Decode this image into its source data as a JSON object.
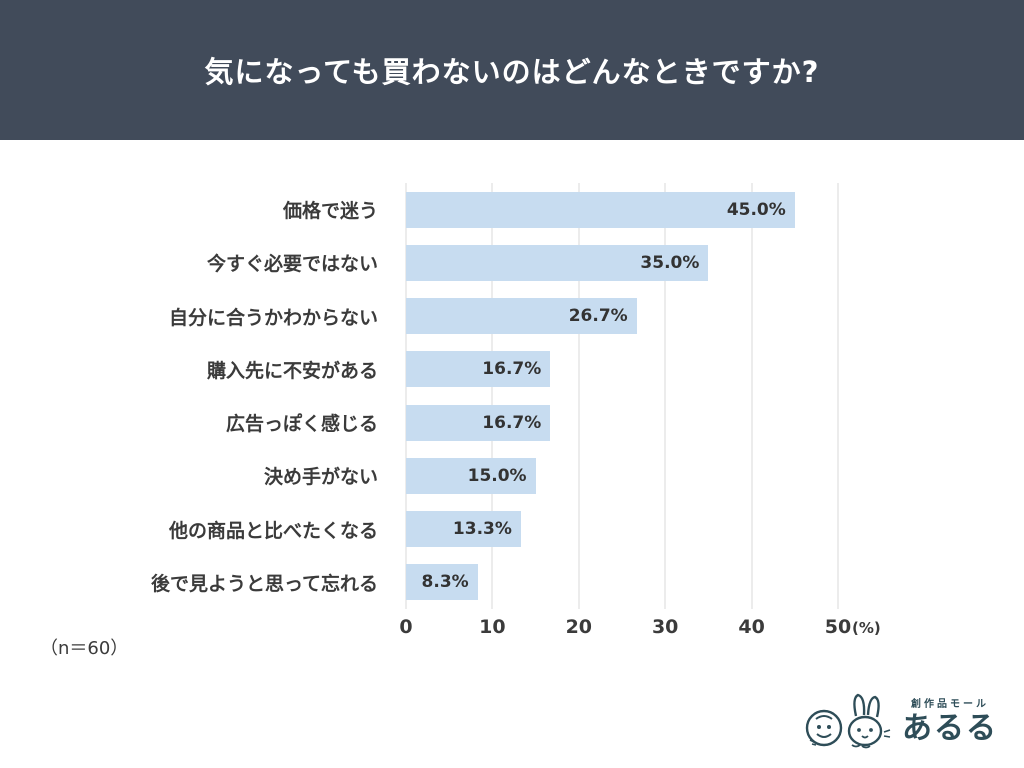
{
  "header": {
    "title": "気になっても買わないのはどんなときですか?"
  },
  "chart_data": {
    "type": "bar",
    "orientation": "horizontal",
    "title": "気になっても買わないのはどんなときですか?",
    "categories": [
      "価格で迷う",
      "今すぐ必要ではない",
      "自分に合うかわからない",
      "購入先に不安がある",
      "広告っぽく感じる",
      "決め手がない",
      "他の商品と比べたくなる",
      "後で見ようと思って忘れる"
    ],
    "values": [
      45.0,
      35.0,
      26.7,
      16.7,
      16.7,
      15.0,
      13.3,
      8.3
    ],
    "value_labels": [
      "45.0%",
      "35.0%",
      "26.7%",
      "16.7%",
      "16.7%",
      "15.0%",
      "13.3%",
      "8.3%"
    ],
    "xlim": [
      0,
      50
    ],
    "x_ticks": [
      "0",
      "10",
      "20",
      "30",
      "40",
      "50"
    ],
    "x_unit_label": "(%)",
    "grid": true,
    "legend": "none",
    "bar_color": "#c7dcf0",
    "colors": {
      "header_bg": "#414b5a",
      "header_text": "#ffffff",
      "text": "#3b3b3b",
      "gridline": "#d8d8d8"
    }
  },
  "footer": {
    "sample_note": "（n＝60）"
  },
  "logo": {
    "tagline": "創作品モール",
    "brand": "あるる",
    "color": "#2e4d58"
  }
}
